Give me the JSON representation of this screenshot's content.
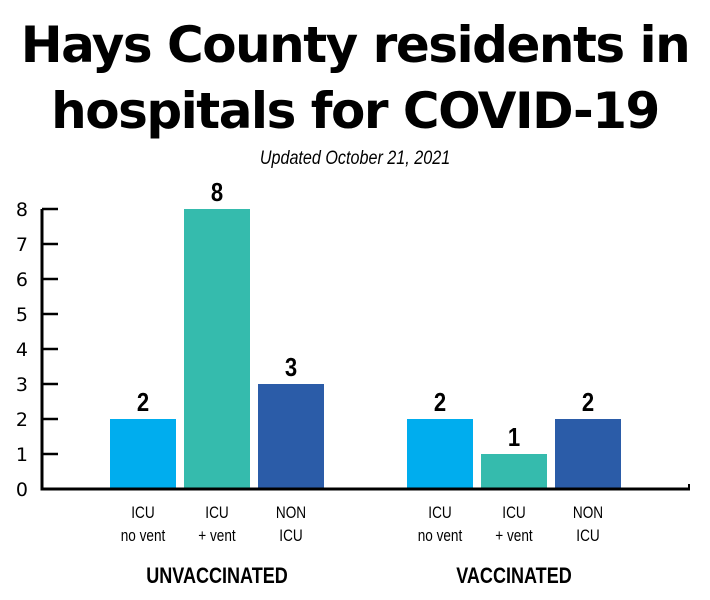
{
  "chart_data": {
    "type": "bar",
    "title_lines": [
      "Hays County residents in",
      "hospitals for COVID-19"
    ],
    "subtitle": "Updated October 21, 2021",
    "ylim": [
      0,
      8
    ],
    "yticks": [
      "0",
      "1",
      "2",
      "3",
      "4",
      "5",
      "6",
      "7",
      "8"
    ],
    "groups": [
      {
        "name": "UNVACCINATED",
        "bars": [
          {
            "label_line1": "ICU",
            "label_line2": "no vent",
            "value": 2,
            "value_label": "2",
            "color": "#00adee"
          },
          {
            "label_line1": "ICU",
            "label_line2": "+ vent",
            "value": 8,
            "value_label": "8",
            "color": "#35bbad"
          },
          {
            "label_line1": "NON",
            "label_line2": "ICU",
            "value": 3,
            "value_label": "3",
            "color": "#2b5ca8"
          }
        ]
      },
      {
        "name": "VACCINATED",
        "bars": [
          {
            "label_line1": "ICU",
            "label_line2": "no vent",
            "value": 2,
            "value_label": "2",
            "color": "#00adee"
          },
          {
            "label_line1": "ICU",
            "label_line2": "+ vent",
            "value": 1,
            "value_label": "1",
            "color": "#35bbad"
          },
          {
            "label_line1": "NON",
            "label_line2": "ICU",
            "value": 2,
            "value_label": "2",
            "color": "#2b5ca8"
          }
        ]
      }
    ],
    "grid": false,
    "legend": "none"
  }
}
